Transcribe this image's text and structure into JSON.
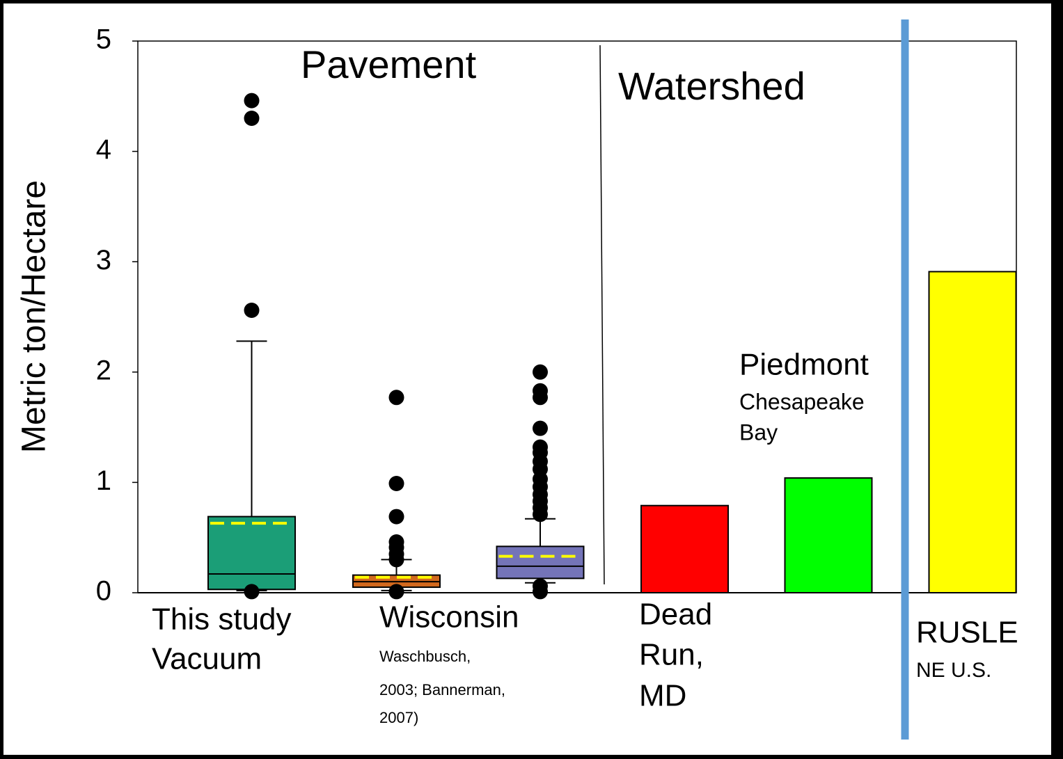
{
  "chart_data": {
    "type": "box",
    "y_label": "Metric ton/Hectare",
    "annotations": [
      "Pavement",
      "Watershed"
    ],
    "ylim": [
      0,
      5
    ],
    "yticks": [
      0,
      1,
      2,
      3,
      4,
      5
    ],
    "series": [
      {
        "type": "box",
        "color": "#1b9e77",
        "mean_color": "#ffff00",
        "label": [
          "This study",
          "Vacuum"
        ],
        "whisker_low": 0.02,
        "q1": 0.03,
        "median": 0.17,
        "q3": 0.69,
        "whisker_high": 2.28,
        "mean": 0.63,
        "outliers": [
          0.01,
          2.56,
          4.3,
          4.46
        ]
      },
      {
        "type": "box",
        "color": "#d2691e",
        "mean_color": "#ffff00",
        "label": [
          "Wisconsin"
        ],
        "note": [
          "Waschbusch,",
          "2003;  Bannerman,",
          "2007)"
        ],
        "whisker_low": 0.02,
        "q1": 0.05,
        "median": 0.1,
        "q3": 0.16,
        "whisker_high": 0.3,
        "mean": 0.14,
        "outliers": [
          0.01,
          0.3,
          0.35,
          0.41,
          0.46,
          0.69,
          0.99,
          1.77
        ]
      },
      {
        "type": "box",
        "color": "#7474b8",
        "mean_color": "#ffff00",
        "whisker_low": 0.09,
        "q1": 0.13,
        "median": 0.24,
        "q3": 0.42,
        "whisker_high": 0.67,
        "mean": 0.33,
        "outliers": [
          0.01,
          0.06,
          0.71,
          0.77,
          0.83,
          0.89,
          0.96,
          1.03,
          1.12,
          1.19,
          1.27,
          1.32,
          1.49,
          1.77,
          1.83,
          2.0
        ]
      },
      {
        "type": "bar",
        "color": "#ff0000",
        "label": [
          "Dead",
          "Run,",
          "MD"
        ],
        "value": 0.79
      },
      {
        "type": "bar",
        "color": "#00ff00",
        "label": [
          "Piedmont"
        ],
        "note": [
          "Chesapeake",
          "Bay"
        ],
        "value": 1.04
      },
      {
        "type": "bar",
        "color": "#ffff00",
        "label": [
          "RUSLE"
        ],
        "note": [
          "NE U.S."
        ],
        "value": 2.91
      }
    ]
  }
}
